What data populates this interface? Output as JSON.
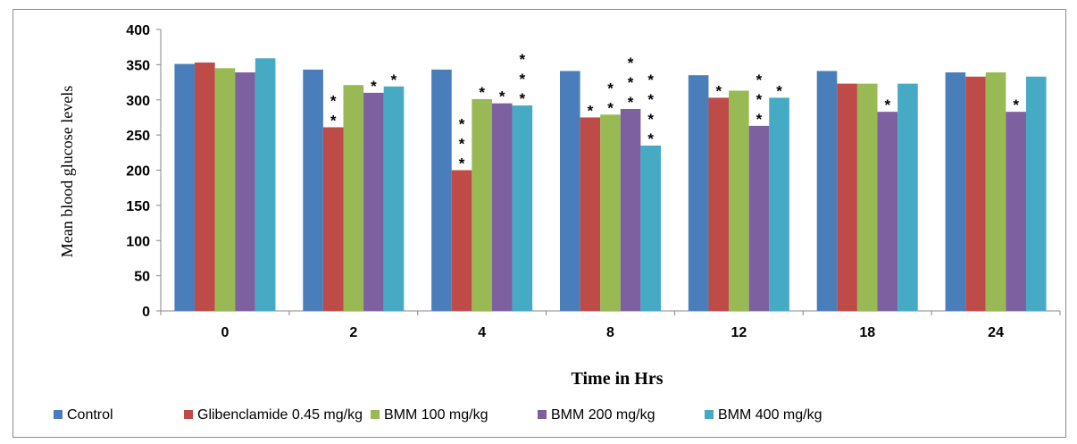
{
  "chart_data": {
    "type": "bar",
    "title": "",
    "xlabel": "Time in Hrs",
    "ylabel": "Mean blood glucose levels",
    "ylim": [
      0,
      400
    ],
    "yticks": [
      "0",
      "50",
      "100",
      "150",
      "200",
      "250",
      "300",
      "350",
      "400"
    ],
    "categories": [
      "0",
      "2",
      "4",
      "8",
      "12",
      "18",
      "24"
    ],
    "grid": false,
    "legend_position": "bottom",
    "series": [
      {
        "name": "Control",
        "color": "#4a7ebb",
        "values": [
          351,
          343,
          343,
          341,
          335,
          341,
          339
        ],
        "significance": [
          0,
          0,
          0,
          0,
          0,
          0,
          0
        ]
      },
      {
        "name": "Glibenclamide 0.45 mg/kg",
        "color": "#be4b48",
        "values": [
          353,
          261,
          200,
          275,
          303,
          323,
          333
        ],
        "significance": [
          0,
          2,
          3,
          1,
          1,
          0,
          0
        ]
      },
      {
        "name": "BMM 100 mg/kg",
        "color": "#98b954",
        "values": [
          345,
          321,
          301,
          279,
          313,
          323,
          339
        ],
        "significance": [
          0,
          0,
          1,
          2,
          0,
          0,
          0
        ]
      },
      {
        "name": "BMM 200 mg/kg",
        "color": "#7d60a0",
        "values": [
          339,
          310,
          295,
          287,
          263,
          283,
          283
        ],
        "significance": [
          0,
          1,
          1,
          3,
          3,
          1,
          1
        ]
      },
      {
        "name": "BMM 400 mg/kg",
        "color": "#46aac5",
        "values": [
          359,
          319,
          292,
          235,
          303,
          323,
          333
        ],
        "significance": [
          0,
          1,
          3,
          4,
          1,
          0,
          0
        ]
      }
    ],
    "significance_marker": "*"
  }
}
